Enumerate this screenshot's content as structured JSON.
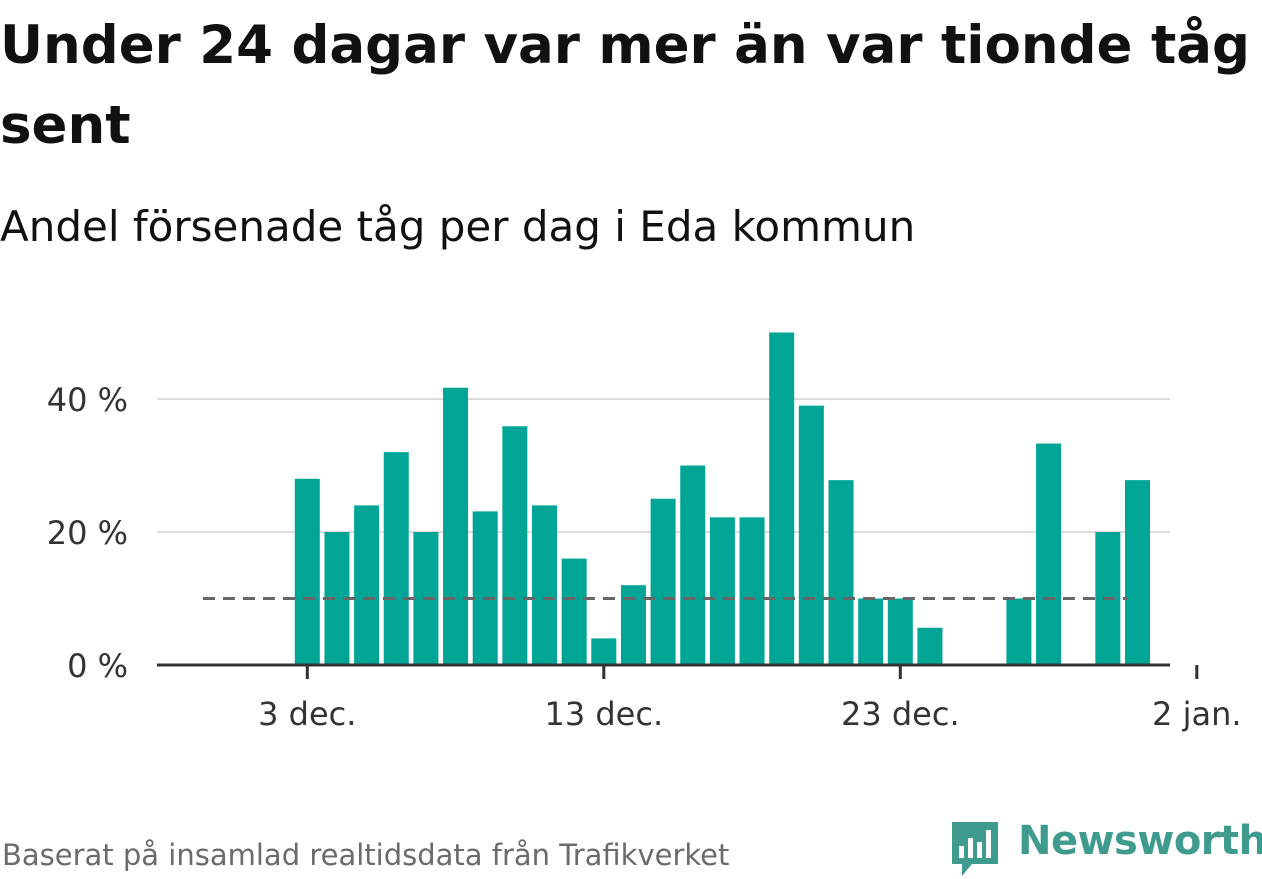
{
  "title": "Under 24 dagar var mer än var tionde tåg sent",
  "subtitle": "Andel försenade tåg per dag i Eda kommun",
  "source": "Baserat på insamlad realtidsdata från Trafikverket",
  "logo": {
    "text": "Newsworthy",
    "icon": "newsworthy-chart-bubble-icon"
  },
  "colors": {
    "bar": "#00a596",
    "reference_line": "#666666",
    "grid": "#dddddd",
    "axis": "#333333",
    "logo": "#3e9b8d"
  },
  "chart_data": {
    "type": "bar",
    "title": "Andel försenade tåg per dag i Eda kommun",
    "unit": "%",
    "x": [
      "1 dec.",
      "2 dec.",
      "3 dec.",
      "4 dec.",
      "5 dec.",
      "6 dec.",
      "7 dec.",
      "8 dec.",
      "9 dec.",
      "10 dec.",
      "11 dec.",
      "12 dec.",
      "13 dec.",
      "14 dec.",
      "15 dec.",
      "16 dec.",
      "17 dec.",
      "18 dec.",
      "19 dec.",
      "20 dec.",
      "21 dec.",
      "22 dec.",
      "23 dec.",
      "24 dec.",
      "25 dec.",
      "26 dec.",
      "27 dec.",
      "28 dec.",
      "29 dec.",
      "30 dec.",
      "31 dec."
    ],
    "values": [
      null,
      null,
      28,
      20,
      24,
      32,
      20,
      41.7,
      23.1,
      35.9,
      24,
      16,
      4,
      12,
      25,
      30,
      22.2,
      22.2,
      50,
      39,
      27.8,
      10,
      10,
      5.6,
      0,
      0,
      10,
      33.3,
      0,
      20,
      27.8
    ],
    "reference_line": 10,
    "ylim": [
      0,
      52
    ],
    "yticks": [
      0,
      20,
      40
    ],
    "ytick_labels": [
      "0 %",
      "20 %",
      "40 %"
    ],
    "xtick_values": [
      "3 dec.",
      "13 dec.",
      "23 dec.",
      "2 jan."
    ],
    "xtick_labels": [
      "3 dec.",
      "13 dec.",
      "23 dec.",
      "2 jan."
    ],
    "grid": true
  }
}
